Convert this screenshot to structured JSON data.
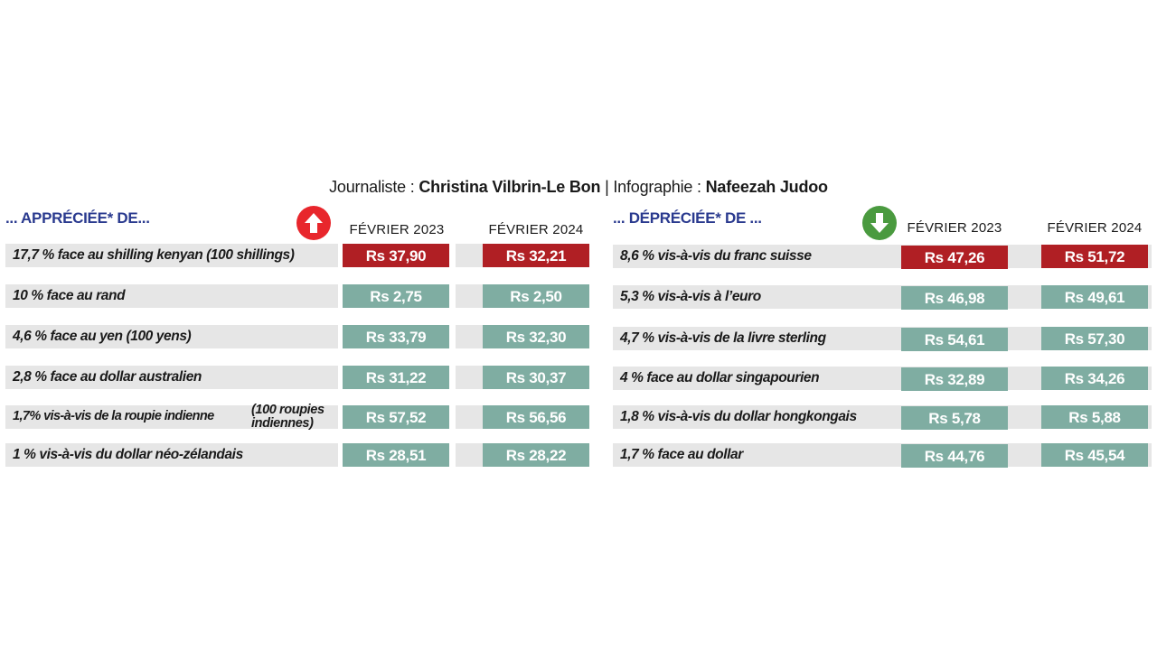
{
  "credits": {
    "journalist_label": "Journaliste : ",
    "journalist_name": "Christina Vilbrin-Le Bon",
    "separator": " | ",
    "infographics_label": "Infographie : ",
    "infographics_name": "Nafeezah Judoo"
  },
  "colors": {
    "red": "#b01f24",
    "teal": "#7fada2",
    "green": "#4a9a3f",
    "title_blue": "#2a3a8f",
    "row_bg": "#e6e6e6"
  },
  "appreciated": {
    "title": "... APPRÉCIÉE* DE...",
    "icon": "arrow-up-icon",
    "col_2023": "FÉVRIER 2023",
    "col_2024": "FÉVRIER 2024",
    "rows": [
      {
        "label": "17,7 % face au shilling kenyan (100 shillings)",
        "note": "",
        "v2023": "Rs 37,90",
        "v2024": "Rs 32,21"
      },
      {
        "label": "10 % face au rand",
        "note": "",
        "v2023": "Rs 2,75",
        "v2024": "Rs 2,50"
      },
      {
        "label": "4,6 % face au yen (100 yens)",
        "note": "",
        "v2023": "Rs 33,79",
        "v2024": "Rs 32,30"
      },
      {
        "label": "2,8 % face au dollar australien",
        "note": "",
        "v2023": "Rs 31,22",
        "v2024": "Rs 30,37"
      },
      {
        "label": "1,7% vis-à-vis de la roupie indienne",
        "note": "(100 roupies indiennes)",
        "v2023": "Rs 57,52",
        "v2024": "Rs 56,56"
      },
      {
        "label": "1 % vis-à-vis du dollar néo-zélandais",
        "note": "",
        "v2023": "Rs 28,51",
        "v2024": "Rs 28,22"
      }
    ]
  },
  "depreciated": {
    "title": "... DÉPRÉCIÉE* DE ...",
    "icon": "arrow-down-icon",
    "col_2023": "FÉVRIER 2023",
    "col_2024": "FÉVRIER 2024",
    "rows": [
      {
        "label": "8,6 % vis-à-vis du franc suisse",
        "v2023": "Rs 47,26",
        "v2024": "Rs 51,72"
      },
      {
        "label": "5,3 % vis-à-vis à l’euro",
        "v2023": "Rs 46,98",
        "v2024": "Rs 49,61"
      },
      {
        "label": "4,7 % vis-à-vis de la livre sterling",
        "v2023": "Rs 54,61",
        "v2024": "Rs 57,30"
      },
      {
        "label": "4 % face au dollar singapourien",
        "v2023": "Rs 32,89",
        "v2024": "Rs 34,26"
      },
      {
        "label": "1,8 % vis-à-vis du dollar hongkongais",
        "v2023": "Rs 5,78",
        "v2024": "Rs 5,88"
      },
      {
        "label": "1,7 % face au dollar",
        "v2023": "Rs 44,76",
        "v2024": "Rs 45,54"
      }
    ]
  }
}
